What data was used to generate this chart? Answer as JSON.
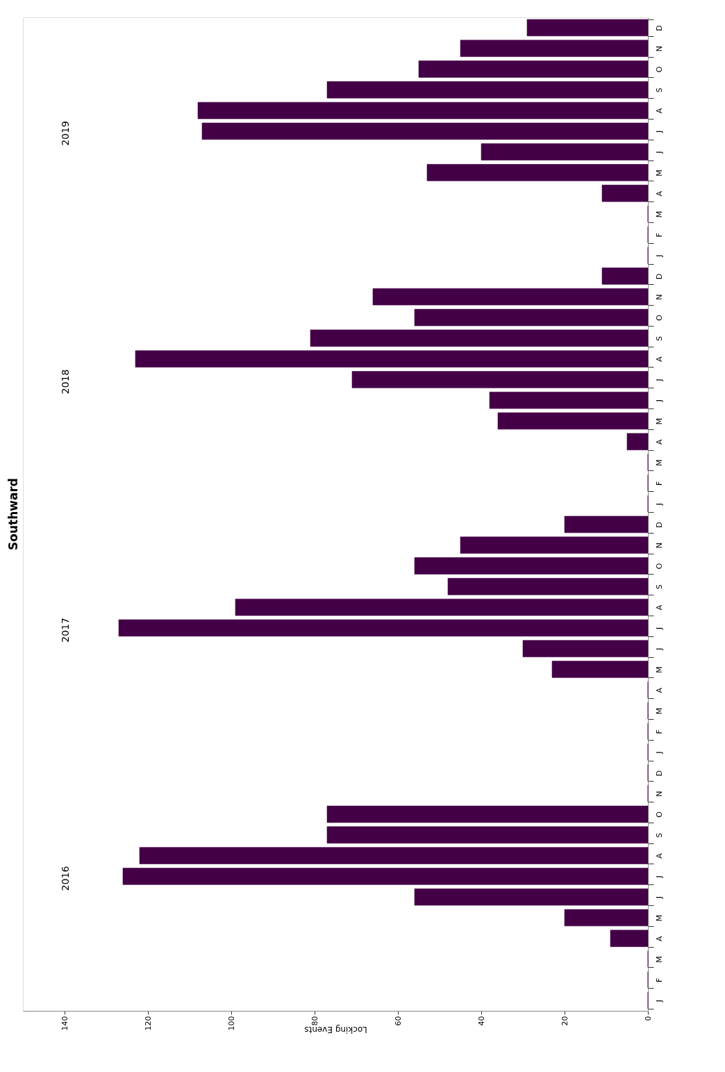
{
  "chart_data": {
    "type": "bar",
    "orientation": "horizontal",
    "title": "Southward",
    "xlabel": "Locking Events",
    "categories": [
      "D",
      "N",
      "O",
      "S",
      "A",
      "J",
      "J",
      "M",
      "A",
      "M",
      "F",
      "J",
      "D",
      "N",
      "O",
      "S",
      "A",
      "J",
      "J",
      "M",
      "A",
      "M",
      "F",
      "J",
      "D",
      "N",
      "O",
      "S",
      "A",
      "J",
      "J",
      "M",
      "A",
      "M",
      "F",
      "J",
      "D",
      "N",
      "O",
      "S",
      "A",
      "J",
      "J",
      "M",
      "A",
      "M",
      "F",
      "J"
    ],
    "values": [
      29,
      45,
      55,
      77,
      108,
      107,
      40,
      53,
      11,
      0,
      0,
      0,
      11,
      66,
      56,
      81,
      123,
      71,
      38,
      36,
      5,
      0,
      0,
      0,
      20,
      45,
      56,
      48,
      99,
      127,
      30,
      23,
      0,
      0,
      0,
      0,
      0,
      0,
      77,
      77,
      122,
      126,
      56,
      20,
      9,
      0,
      0,
      0
    ],
    "color": "#440047",
    "xlim": [
      150,
      0
    ],
    "xticks": [
      0,
      20,
      40,
      60,
      80,
      100,
      120,
      140
    ],
    "annotations": [
      "2019",
      "2018",
      "2017",
      "2016"
    ],
    "grid": false
  }
}
